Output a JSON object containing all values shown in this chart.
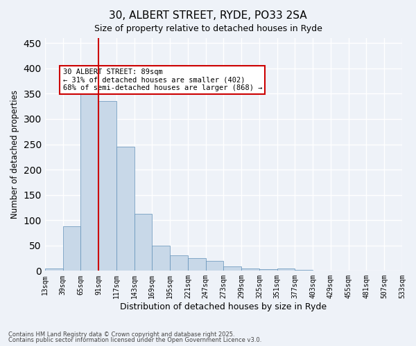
{
  "title1": "30, ALBERT STREET, RYDE, PO33 2SA",
  "title2": "Size of property relative to detached houses in Ryde",
  "xlabel": "Distribution of detached houses by size in Ryde",
  "ylabel": "Number of detached properties",
  "bar_values": [
    5,
    88,
    350,
    335,
    245,
    112,
    50,
    30,
    25,
    20,
    8,
    5,
    3,
    4,
    2,
    1,
    0,
    0,
    0,
    0
  ],
  "categories": [
    "13sqm",
    "39sqm",
    "65sqm",
    "91sqm",
    "117sqm",
    "143sqm",
    "169sqm",
    "195sqm",
    "221sqm",
    "247sqm",
    "273sqm",
    "299sqm",
    "325sqm",
    "351sqm",
    "377sqm",
    "403sqm",
    "429sqm",
    "455sqm",
    "481sqm",
    "507sqm",
    "533sqm"
  ],
  "bar_color": "#c8d8e8",
  "bar_edge_color": "#6090b8",
  "background_color": "#eef2f8",
  "vline_color": "#cc0000",
  "vline_x": 2.5,
  "annotation_text": "30 ALBERT STREET: 89sqm\n← 31% of detached houses are smaller (402)\n68% of semi-detached houses are larger (868) →",
  "annotation_box_color": "#ffffff",
  "annotation_box_edge": "#cc0000",
  "ylim": [
    0,
    460
  ],
  "yticks": [
    0,
    50,
    100,
    150,
    200,
    250,
    300,
    350,
    400,
    450
  ],
  "grid_color": "#ffffff",
  "footer1": "Contains HM Land Registry data © Crown copyright and database right 2025.",
  "footer2": "Contains public sector information licensed under the Open Government Licence v3.0."
}
